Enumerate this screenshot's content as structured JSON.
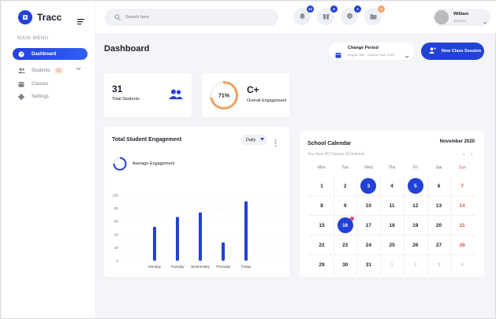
{
  "app": {
    "name": "Tracc"
  },
  "sidebar": {
    "caption": "MAIN MENU",
    "items": [
      {
        "label": "Dashboard",
        "icon": "dashboard-icon",
        "active": true
      },
      {
        "label": "Students",
        "icon": "students-icon",
        "count": "01"
      },
      {
        "label": "Classes",
        "icon": "classes-icon"
      },
      {
        "label": "Settings",
        "icon": "settings-icon"
      }
    ]
  },
  "topbar": {
    "search_placeholder": "Search here",
    "badges": [
      "12",
      "5",
      "2",
      "4"
    ],
    "user": {
      "name": "William",
      "role": "Teacher"
    }
  },
  "page": {
    "title": "Dashboard"
  },
  "period": {
    "label": "Change Period",
    "range": "August 28th - October 28th, 2020"
  },
  "actions": {
    "new_session": "New Class Session"
  },
  "stats": {
    "students": {
      "value": "31",
      "caption": "Total Students"
    },
    "engagement": {
      "grade": "C+",
      "caption": "Overall Engagement",
      "percent_label": "71%",
      "percent": 71
    }
  },
  "engagement_card": {
    "title": "Total Student Engagement",
    "filter": "Daily",
    "avg_label": "Average Engagement",
    "avg_fraction": 0.75
  },
  "chart_data": {
    "type": "bar",
    "categories": [
      "Monday",
      "Tuesday",
      "Wednesday",
      "Thursday",
      "Friday"
    ],
    "values": [
      52,
      67,
      74,
      28,
      91
    ],
    "yticks": [
      "100",
      "80",
      "60",
      "40",
      "20",
      "0"
    ],
    "ylim": [
      0,
      100
    ],
    "color": "#2241d6"
  },
  "calendar": {
    "title": "School Calendar",
    "month": "November 2020",
    "subtitle": "You have 80 Classes Scheduled",
    "nav_prev": "‹",
    "nav_next": "›",
    "weekdays": [
      "Mon",
      "Tue",
      "Wed",
      "Thu",
      "Fri",
      "Sat",
      "Sun"
    ],
    "weeks": [
      [
        "1",
        "2",
        "3",
        "4",
        "5",
        "6",
        "7"
      ],
      [
        "8",
        "9",
        "10",
        "11",
        "12",
        "13",
        "14"
      ],
      [
        "15",
        "16",
        "17",
        "18",
        "19",
        "20",
        "21"
      ],
      [
        "22",
        "23",
        "24",
        "25",
        "26",
        "27",
        "28"
      ],
      [
        "29",
        "30",
        "31",
        "1",
        "2",
        "3",
        "4"
      ]
    ],
    "selected": [
      "3",
      "5",
      "16"
    ]
  },
  "colors": {
    "accent": "#2241d6",
    "sunday": "#e0563f",
    "ring": "#f0a05f"
  }
}
